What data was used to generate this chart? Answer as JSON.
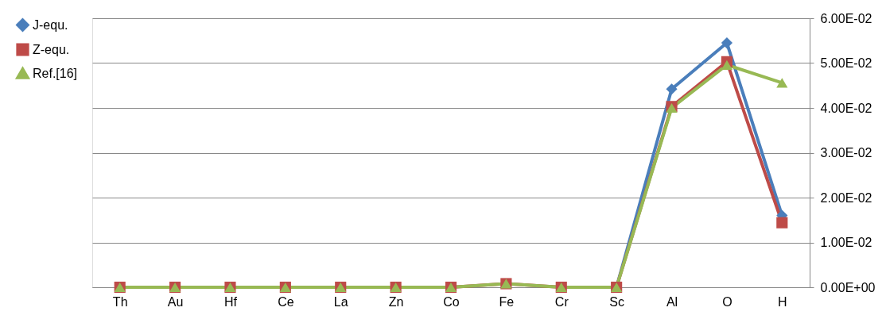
{
  "chart_data": {
    "type": "line",
    "categories": [
      "Th",
      "Au",
      "Hf",
      "Ce",
      "La",
      "Zn",
      "Co",
      "Fe",
      "Cr",
      "Sc",
      "Al",
      "O",
      "H"
    ],
    "series": [
      {
        "name": "J-equ.",
        "color": "#4a7ebb",
        "marker": "diamond",
        "values": [
          null,
          null,
          null,
          null,
          null,
          null,
          null,
          null,
          null,
          0,
          0.0442,
          0.0545,
          0.016
        ]
      },
      {
        "name": "Z-equ.",
        "color": "#be4b48",
        "marker": "square",
        "values": [
          0,
          0,
          0,
          0,
          0,
          0,
          0,
          0.0008,
          0,
          0,
          0.0403,
          0.0503,
          0.0144
        ]
      },
      {
        "name": "Ref.[16]",
        "color": "#98b954",
        "marker": "triangle",
        "values": [
          0,
          0,
          0,
          0,
          0,
          0,
          0,
          0.0008,
          0,
          0,
          0.04,
          0.0496,
          0.0456
        ]
      }
    ],
    "ylim": [
      0,
      0.06
    ],
    "yticks": [
      {
        "value": 0,
        "label": "0.00E+00"
      },
      {
        "value": 0.01,
        "label": "1.00E-02"
      },
      {
        "value": 0.02,
        "label": "2.00E-02"
      },
      {
        "value": 0.03,
        "label": "3.00E-02"
      },
      {
        "value": 0.04,
        "label": "4.00E-02"
      },
      {
        "value": 0.05,
        "label": "5.00E-02"
      },
      {
        "value": 0.06,
        "label": "6.00E-02"
      }
    ],
    "grid": "y",
    "legend": "left",
    "line_style": "solid"
  }
}
